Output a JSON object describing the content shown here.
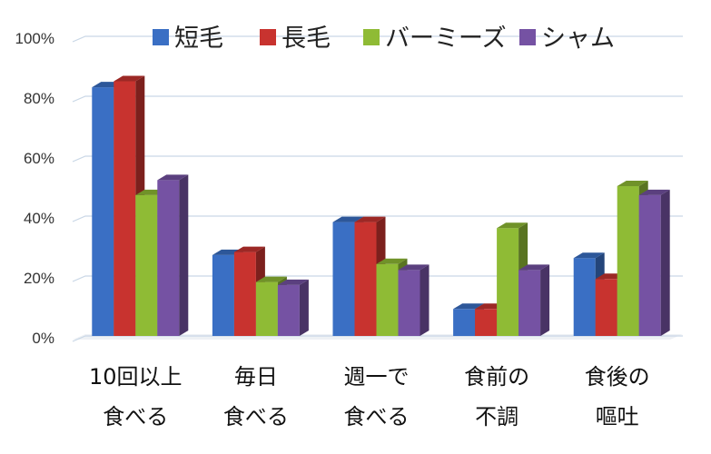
{
  "chart_data": {
    "type": "bar",
    "categories": [
      [
        "10回以上",
        "食べる"
      ],
      [
        "毎日",
        "食べる"
      ],
      [
        "週一で",
        "食べる"
      ],
      [
        "食前の",
        "不調"
      ],
      [
        "食後の",
        "嘔吐"
      ]
    ],
    "series": [
      {
        "name": "短毛",
        "color": "#3a6fc4",
        "values": [
          83,
          27,
          38,
          9,
          26
        ]
      },
      {
        "name": "長毛",
        "color": "#c8332f",
        "values": [
          85,
          28,
          38,
          9,
          19
        ]
      },
      {
        "name": "バーミーズ",
        "color": "#8fbb35",
        "values": [
          47,
          18,
          24,
          36,
          50
        ]
      },
      {
        "name": "シャム",
        "color": "#7552a3",
        "values": [
          52,
          17,
          22,
          22,
          47
        ]
      }
    ],
    "yticks": [
      "0%",
      "20%",
      "40%",
      "60%",
      "80%",
      "100%"
    ],
    "ylim": [
      0,
      100
    ],
    "grid": true,
    "legend_position": "top"
  }
}
